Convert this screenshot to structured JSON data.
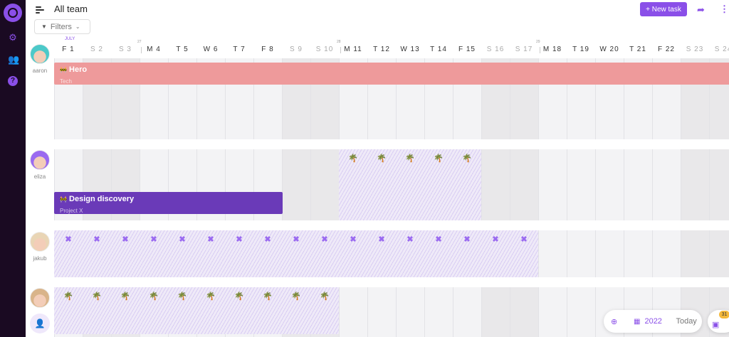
{
  "header": {
    "title": "All team",
    "filters_label": "Filters",
    "new_task_label": "+ New task"
  },
  "timeline": {
    "month": "JULY",
    "days": [
      {
        "l": "F 1"
      },
      {
        "l": "S 2",
        "we": 1
      },
      {
        "l": "S 3",
        "we": 1
      },
      {
        "l": "M 4",
        "wk": "27"
      },
      {
        "l": "T 5"
      },
      {
        "l": "W 6"
      },
      {
        "l": "T 7"
      },
      {
        "l": "F 8"
      },
      {
        "l": "S 9",
        "we": 1
      },
      {
        "l": "S 10",
        "we": 1
      },
      {
        "l": "M 11",
        "wk": "28"
      },
      {
        "l": "T 12"
      },
      {
        "l": "W 13"
      },
      {
        "l": "T 14"
      },
      {
        "l": "F 15"
      },
      {
        "l": "S 16",
        "we": 1
      },
      {
        "l": "S 17",
        "we": 1
      },
      {
        "l": "M 18",
        "wk": "29"
      },
      {
        "l": "T 19"
      },
      {
        "l": "W 20"
      },
      {
        "l": "T 21"
      },
      {
        "l": "F 22"
      },
      {
        "l": "S 23",
        "we": 1
      },
      {
        "l": "S 24",
        "we": 1
      }
    ]
  },
  "users": [
    {
      "name": "aaron",
      "avatar_color": "#4cc9c9"
    },
    {
      "name": "eliza",
      "avatar_color": "#9a6af0"
    },
    {
      "name": "jakub",
      "avatar_color": "#e9d5b5"
    },
    {
      "name": "",
      "avatar_color": "#d9b48a"
    }
  ],
  "tasks": [
    {
      "title": "Hero",
      "subtitle": "Tech",
      "color": "#ee9a9b",
      "user": "aaron",
      "start_day": 1,
      "end_day": 24
    },
    {
      "title": "Design discovery",
      "subtitle": "Project X",
      "color": "#6a3ab8",
      "user": "eliza",
      "start_day": 1,
      "end_day": 8
    }
  ],
  "time_off": [
    {
      "user": "eliza",
      "type": "vacation",
      "icon": "palm-tree-icon",
      "start_day": 11,
      "end_day": 15
    },
    {
      "user": "jakub",
      "type": "unavailable",
      "icon": "x-icon",
      "start_day": 1,
      "end_day": 17
    },
    {
      "user": "4th",
      "type": "vacation",
      "icon": "palm-tree-icon",
      "start_day": 1,
      "end_day": 10
    }
  ],
  "footer": {
    "year": "2022",
    "today_label": "Today",
    "inbox_count": "31"
  },
  "colors": {
    "accent": "#8a4fe8",
    "sidebar": "#1a0a22"
  }
}
